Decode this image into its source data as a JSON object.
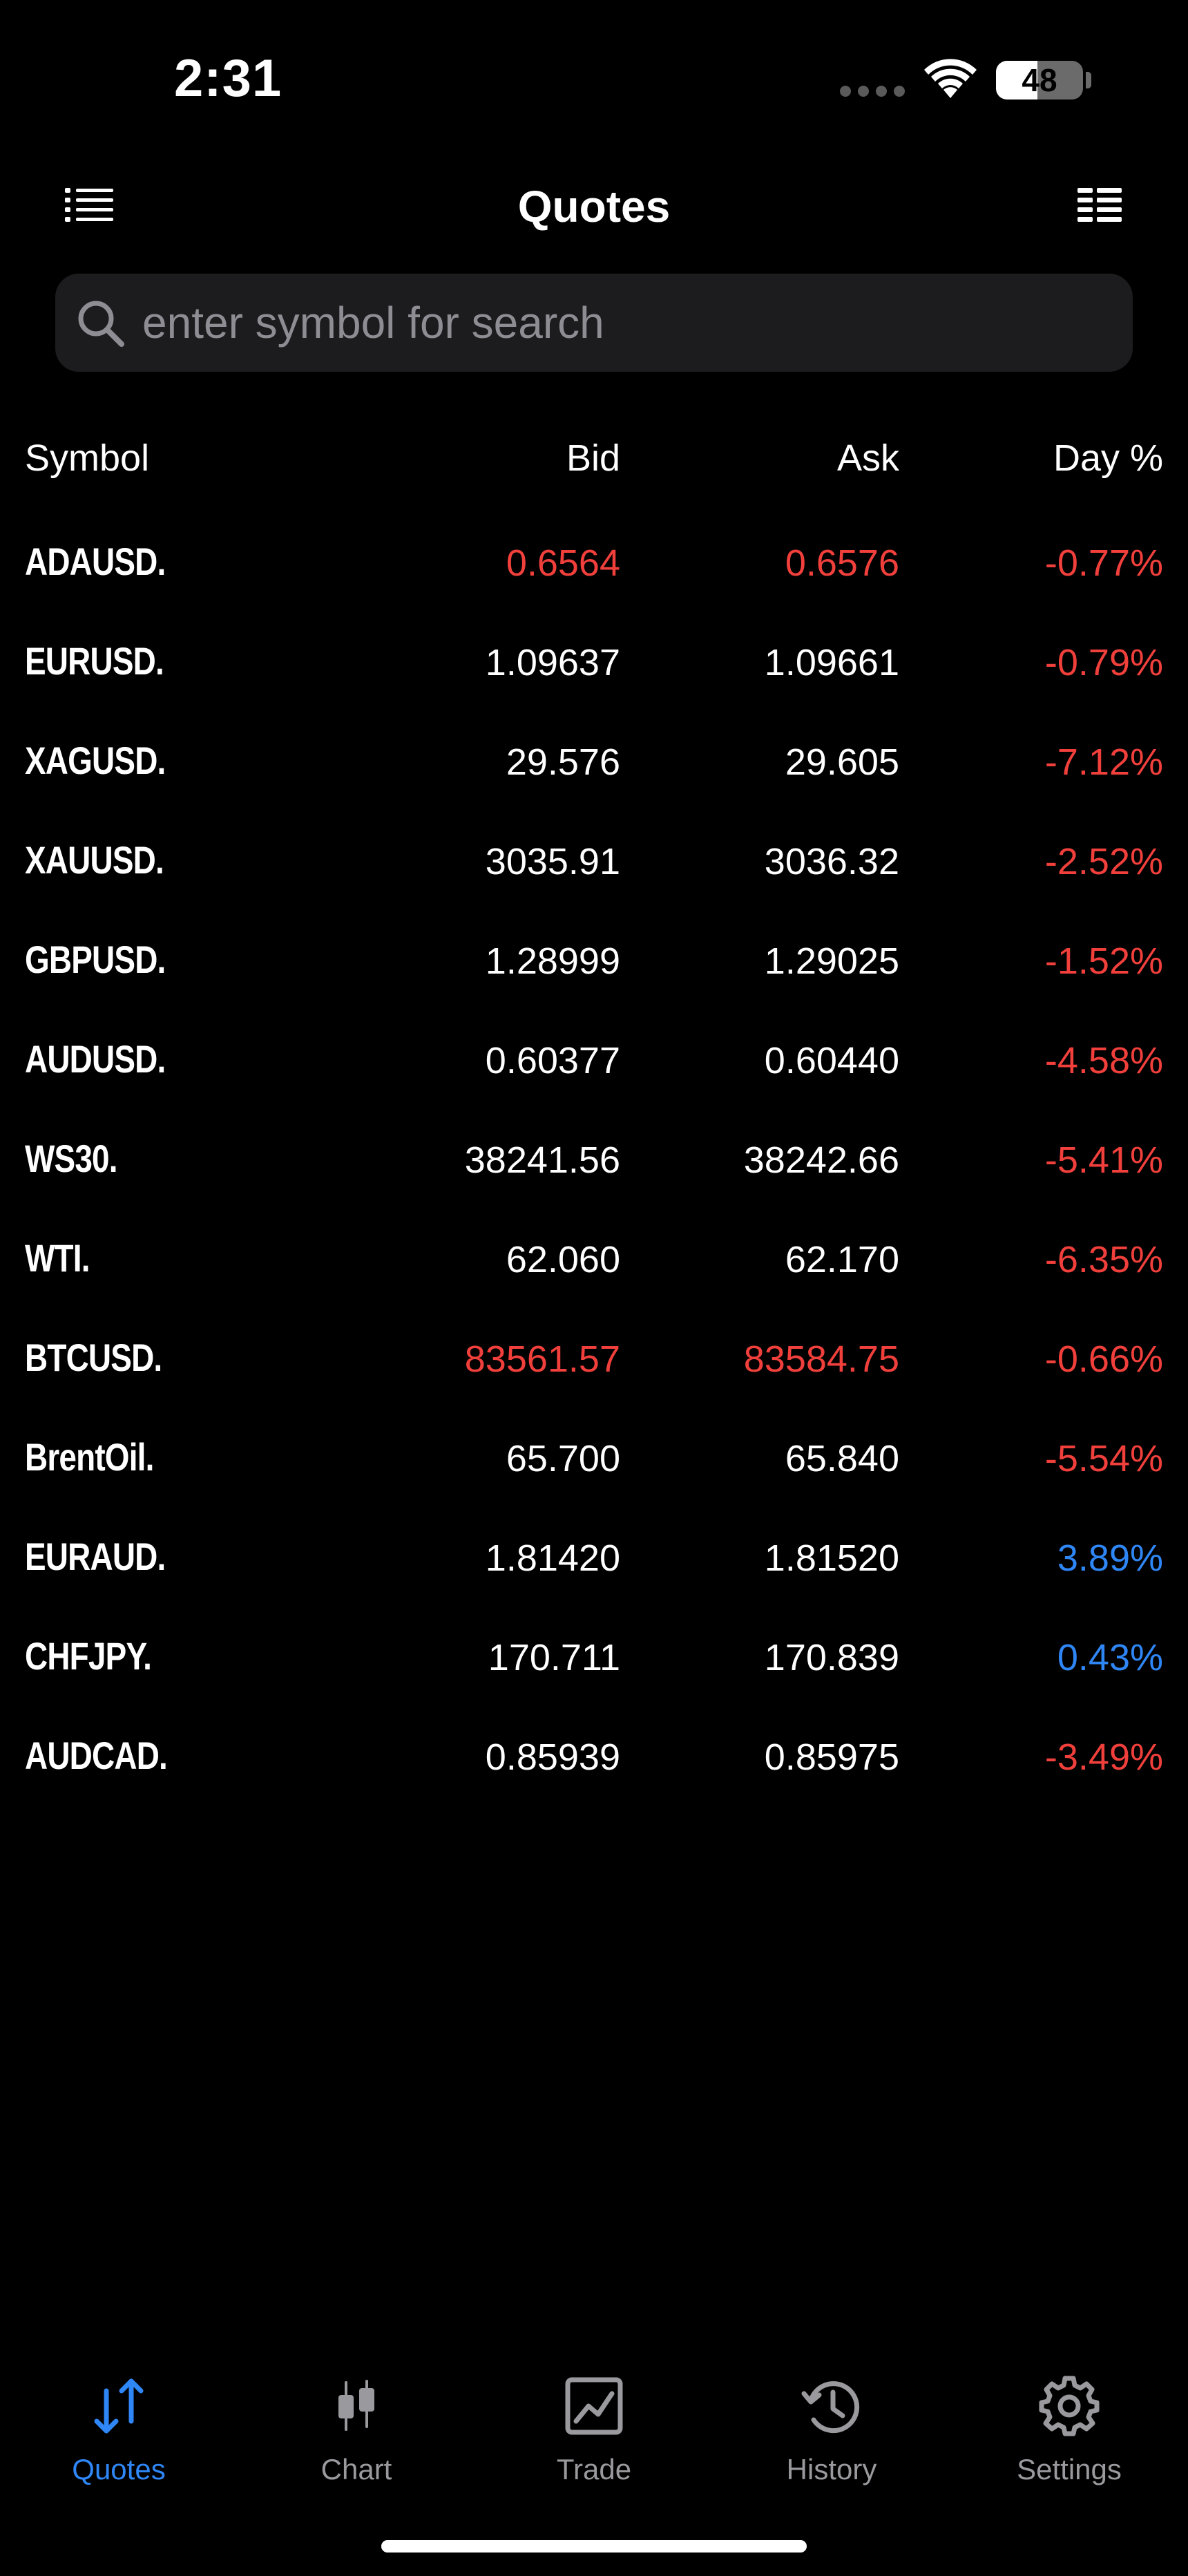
{
  "status_bar": {
    "time": "2:31",
    "battery_level": "48",
    "battery_fraction": 0.48
  },
  "nav": {
    "title": "Quotes",
    "left_icon": "list-icon",
    "right_icon": "grid-list-icon"
  },
  "search": {
    "placeholder": "enter symbol for search",
    "value": ""
  },
  "table": {
    "headers": {
      "symbol": "Symbol",
      "bid": "Bid",
      "ask": "Ask",
      "day": "Day %"
    },
    "rows": [
      {
        "symbol": "ADAUSD.",
        "bid": "0.6564",
        "ask": "0.6576",
        "day": "-0.77%",
        "price_color": "#f1403c",
        "day_color": "#f1403c"
      },
      {
        "symbol": "EURUSD.",
        "bid": "1.09637",
        "ask": "1.09661",
        "day": "-0.79%",
        "price_color": "#ffffff",
        "day_color": "#f1403c"
      },
      {
        "symbol": "XAGUSD.",
        "bid": "29.576",
        "ask": "29.605",
        "day": "-7.12%",
        "price_color": "#ffffff",
        "day_color": "#f1403c"
      },
      {
        "symbol": "XAUUSD.",
        "bid": "3035.91",
        "ask": "3036.32",
        "day": "-2.52%",
        "price_color": "#ffffff",
        "day_color": "#f1403c"
      },
      {
        "symbol": "GBPUSD.",
        "bid": "1.28999",
        "ask": "1.29025",
        "day": "-1.52%",
        "price_color": "#ffffff",
        "day_color": "#f1403c"
      },
      {
        "symbol": "AUDUSD.",
        "bid": "0.60377",
        "ask": "0.60440",
        "day": "-4.58%",
        "price_color": "#ffffff",
        "day_color": "#f1403c"
      },
      {
        "symbol": "WS30.",
        "bid": "38241.56",
        "ask": "38242.66",
        "day": "-5.41%",
        "price_color": "#ffffff",
        "day_color": "#f1403c"
      },
      {
        "symbol": "WTI.",
        "bid": "62.060",
        "ask": "62.170",
        "day": "-6.35%",
        "price_color": "#ffffff",
        "day_color": "#f1403c"
      },
      {
        "symbol": "BTCUSD.",
        "bid": "83561.57",
        "ask": "83584.75",
        "day": "-0.66%",
        "price_color": "#f1403c",
        "day_color": "#f1403c"
      },
      {
        "symbol": "BrentOil.",
        "bid": "65.700",
        "ask": "65.840",
        "day": "-5.54%",
        "price_color": "#ffffff",
        "day_color": "#f1403c"
      },
      {
        "symbol": "EURAUD.",
        "bid": "1.81420",
        "ask": "1.81520",
        "day": "3.89%",
        "price_color": "#ffffff",
        "day_color": "#2f86f6"
      },
      {
        "symbol": "CHFJPY.",
        "bid": "170.711",
        "ask": "170.839",
        "day": "0.43%",
        "price_color": "#ffffff",
        "day_color": "#2f86f6"
      },
      {
        "symbol": "AUDCAD.",
        "bid": "0.85939",
        "ask": "0.85975",
        "day": "-3.49%",
        "price_color": "#ffffff",
        "day_color": "#f1403c"
      }
    ]
  },
  "tabs": [
    {
      "label": "Quotes",
      "icon": "up-down-arrows-icon",
      "active": true
    },
    {
      "label": "Chart",
      "icon": "candlestick-icon",
      "active": false
    },
    {
      "label": "Trade",
      "icon": "trade-chart-icon",
      "active": false
    },
    {
      "label": "History",
      "icon": "history-clock-icon",
      "active": false
    },
    {
      "label": "Settings",
      "icon": "gear-icon",
      "active": false
    }
  ],
  "colors": {
    "accent": "#2f86f6",
    "negative": "#f1403c",
    "inactive_tab": "#9a9a9e",
    "background": "#000000"
  }
}
